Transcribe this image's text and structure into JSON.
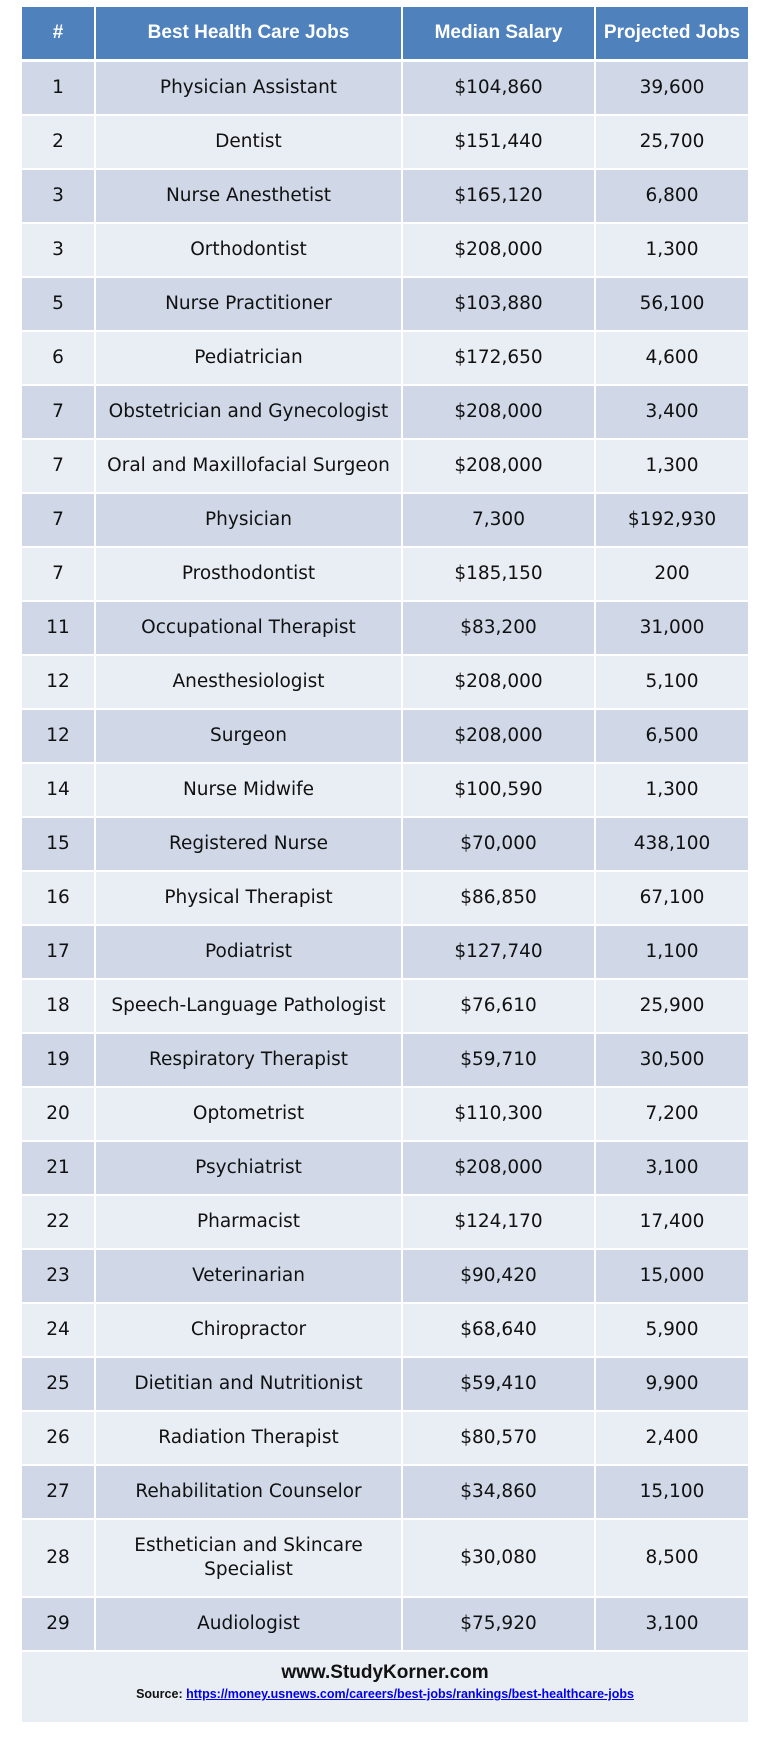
{
  "table": {
    "headers": [
      "#",
      "Best Health  Care Jobs",
      "Median Salary",
      "Projected Jobs"
    ],
    "rows": [
      [
        "1",
        "Physician Assistant",
        "$104,860",
        "39,600"
      ],
      [
        "2",
        "Dentist",
        "$151,440",
        "25,700"
      ],
      [
        "3",
        "Nurse Anesthetist",
        "$165,120",
        "6,800"
      ],
      [
        "3",
        "Orthodontist",
        "$208,000",
        "1,300"
      ],
      [
        "5",
        "Nurse Practitioner",
        "$103,880",
        "56,100"
      ],
      [
        "6",
        "Pediatrician",
        "$172,650",
        "4,600"
      ],
      [
        "7",
        "Obstetrician and Gynecologist",
        "$208,000",
        "3,400"
      ],
      [
        "7",
        "Oral and Maxillofacial Surgeon",
        "$208,000",
        "1,300"
      ],
      [
        "7",
        "Physician",
        "7,300",
        "$192,930"
      ],
      [
        "7",
        "Prosthodontist",
        "$185,150",
        "200"
      ],
      [
        "11",
        "Occupational Therapist",
        "$83,200",
        "31,000"
      ],
      [
        "12",
        "Anesthesiologist",
        "$208,000",
        "5,100"
      ],
      [
        "12",
        "Surgeon",
        "$208,000",
        "6,500"
      ],
      [
        "14",
        "Nurse Midwife",
        "$100,590",
        "1,300"
      ],
      [
        "15",
        "Registered Nurse",
        "$70,000",
        "438,100"
      ],
      [
        "16",
        "Physical Therapist",
        "$86,850",
        "67,100"
      ],
      [
        "17",
        "Podiatrist",
        "$127,740",
        "1,100"
      ],
      [
        "18",
        "Speech-Language  Pathologist",
        "$76,610",
        "25,900"
      ],
      [
        "19",
        "Respiratory Therapist",
        "$59,710",
        "30,500"
      ],
      [
        "20",
        "Optometrist",
        "$110,300",
        "7,200"
      ],
      [
        "21",
        "Psychiatrist",
        "$208,000",
        "3,100"
      ],
      [
        "22",
        "Pharmacist",
        "$124,170",
        "17,400"
      ],
      [
        "23",
        "Veterinarian",
        "$90,420",
        "15,000"
      ],
      [
        "24",
        "Chiropractor",
        "$68,640",
        "5,900"
      ],
      [
        "25",
        "Dietitian and Nutritionist",
        "$59,410",
        "9,900"
      ],
      [
        "26",
        "Radiation Therapist",
        "$80,570",
        "2,400"
      ],
      [
        "27",
        "Rehabilitation Counselor",
        "$34,860",
        "15,100"
      ],
      [
        "28",
        "Esthetician and Skincare Specialist",
        "$30,080",
        "8,500"
      ],
      [
        "29",
        "Audiologist",
        "$75,920",
        "3,100"
      ]
    ]
  },
  "footer": {
    "site": "www.StudyKorner.com",
    "source_label": "Source:",
    "source_url": "https://money.usnews.com/careers/best-jobs/rankings/best-healthcare-jobs"
  }
}
